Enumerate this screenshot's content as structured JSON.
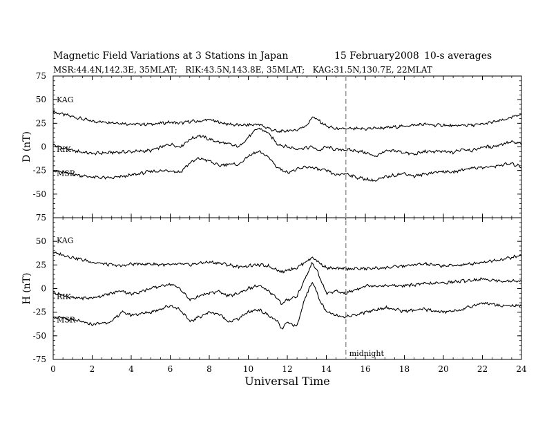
{
  "header": {
    "title": "Magnetic Field Variations at 3 Stations in Japan",
    "date": "15 February2008",
    "averaging": "10-s averages",
    "stations_line": "MSR:44.4N,142.3E, 35MLAT;   RIK:43.5N,143.8E, 35MLAT;   KAG:31.5N,130.7E, 22MLAT"
  },
  "colors": {
    "trace": "#000000",
    "axis": "#000000",
    "marker": "#999999",
    "background": "#ffffff"
  },
  "chart_data": [
    {
      "type": "line",
      "panel": "D",
      "ylabel": "D (nT)",
      "xlabel": "",
      "xlim": [
        0,
        24
      ],
      "ylim": [
        -75,
        75
      ],
      "x_ticks": [
        0,
        2,
        4,
        6,
        8,
        10,
        12,
        14,
        16,
        18,
        20,
        22,
        24
      ],
      "y_ticks": [
        -75,
        -50,
        -25,
        0,
        25,
        50,
        75
      ],
      "x": [
        0,
        1,
        2,
        3,
        4,
        5,
        6,
        6.5,
        7,
        7.5,
        8,
        8.5,
        9,
        9.5,
        10,
        10.5,
        11,
        11.5,
        12,
        12.5,
        13,
        13.3,
        13.6,
        14,
        14.5,
        15,
        15.5,
        16,
        16.5,
        17,
        17.5,
        18,
        18.5,
        19,
        19.5,
        20,
        20.5,
        21,
        21.5,
        22,
        22.5,
        23,
        23.5,
        24
      ],
      "series": [
        {
          "name": "KAG",
          "values": [
            37,
            32,
            27,
            26,
            24,
            24,
            26,
            25,
            27,
            27,
            29,
            26,
            24,
            23,
            23,
            24,
            20,
            16,
            17,
            18,
            23,
            32,
            28,
            22,
            19,
            19,
            19,
            19,
            20,
            20,
            21,
            22,
            23,
            24,
            23,
            23,
            22,
            23,
            23,
            24,
            26,
            28,
            31,
            35
          ]
        },
        {
          "name": "RIK",
          "values": [
            2,
            -4,
            -7,
            -6,
            -5,
            -4,
            3,
            0,
            8,
            12,
            8,
            5,
            3,
            0,
            10,
            20,
            15,
            3,
            0,
            -2,
            -1,
            0,
            -4,
            0,
            -3,
            -3,
            -4,
            -6,
            -10,
            -5,
            -4,
            -6,
            -8,
            -5,
            -5,
            -5,
            -6,
            -2,
            -4,
            0,
            0,
            3,
            5,
            3
          ]
        },
        {
          "name": "MSR",
          "values": [
            -25,
            -29,
            -32,
            -33,
            -30,
            -26,
            -25,
            -27,
            -17,
            -12,
            -15,
            -20,
            -18,
            -19,
            -10,
            -5,
            -10,
            -22,
            -27,
            -24,
            -21,
            -22,
            -24,
            -25,
            -30,
            -28,
            -32,
            -34,
            -36,
            -32,
            -30,
            -28,
            -31,
            -29,
            -27,
            -26,
            -27,
            -24,
            -22,
            -22,
            -21,
            -19,
            -18,
            -21
          ]
        }
      ],
      "series_label_positions": [
        "KAG",
        "RIK",
        "MSR"
      ]
    },
    {
      "type": "line",
      "panel": "H",
      "ylabel": "H (nT)",
      "xlabel": "Universal Time",
      "xlim": [
        0,
        24
      ],
      "ylim": [
        -75,
        75
      ],
      "x_ticks": [
        0,
        2,
        4,
        6,
        8,
        10,
        12,
        14,
        16,
        18,
        20,
        22,
        24
      ],
      "y_ticks": [
        -75,
        -50,
        -25,
        0,
        25,
        50,
        75
      ],
      "x": [
        0,
        1,
        2,
        3,
        3.5,
        4,
        5,
        6,
        6.5,
        7,
        7.5,
        8,
        8.5,
        9,
        9.5,
        10,
        10.5,
        11,
        11.5,
        11.7,
        12,
        12.5,
        12.9,
        13.3,
        13.6,
        14,
        14.5,
        15,
        16,
        17,
        18,
        19,
        20,
        21,
        22,
        23,
        24
      ],
      "series": [
        {
          "name": "KAG",
          "values": [
            38,
            33,
            28,
            25,
            24,
            26,
            26,
            25,
            26,
            25,
            27,
            28,
            27,
            25,
            23,
            24,
            25,
            24,
            20,
            17,
            20,
            22,
            28,
            33,
            28,
            22,
            21,
            21,
            21,
            22,
            24,
            26,
            24,
            25,
            28,
            31,
            35
          ]
        },
        {
          "name": "RIK",
          "values": [
            -4,
            -10,
            -10,
            -5,
            -2,
            -6,
            0,
            5,
            0,
            -12,
            -8,
            -5,
            -3,
            -8,
            -5,
            0,
            3,
            -2,
            -10,
            -17,
            -12,
            -8,
            10,
            28,
            15,
            -5,
            -3,
            -5,
            3,
            3,
            3,
            5,
            6,
            8,
            10,
            8,
            8
          ]
        },
        {
          "name": "MSR",
          "values": [
            -30,
            -33,
            -38,
            -35,
            -25,
            -28,
            -25,
            -18,
            -22,
            -35,
            -30,
            -25,
            -27,
            -35,
            -32,
            -25,
            -22,
            -28,
            -35,
            -43,
            -36,
            -40,
            -10,
            8,
            -10,
            -25,
            -28,
            -30,
            -25,
            -20,
            -24,
            -22,
            -25,
            -22,
            -15,
            -18,
            -18
          ]
        }
      ],
      "annotation": "midnight",
      "marker_x": 15
    }
  ]
}
